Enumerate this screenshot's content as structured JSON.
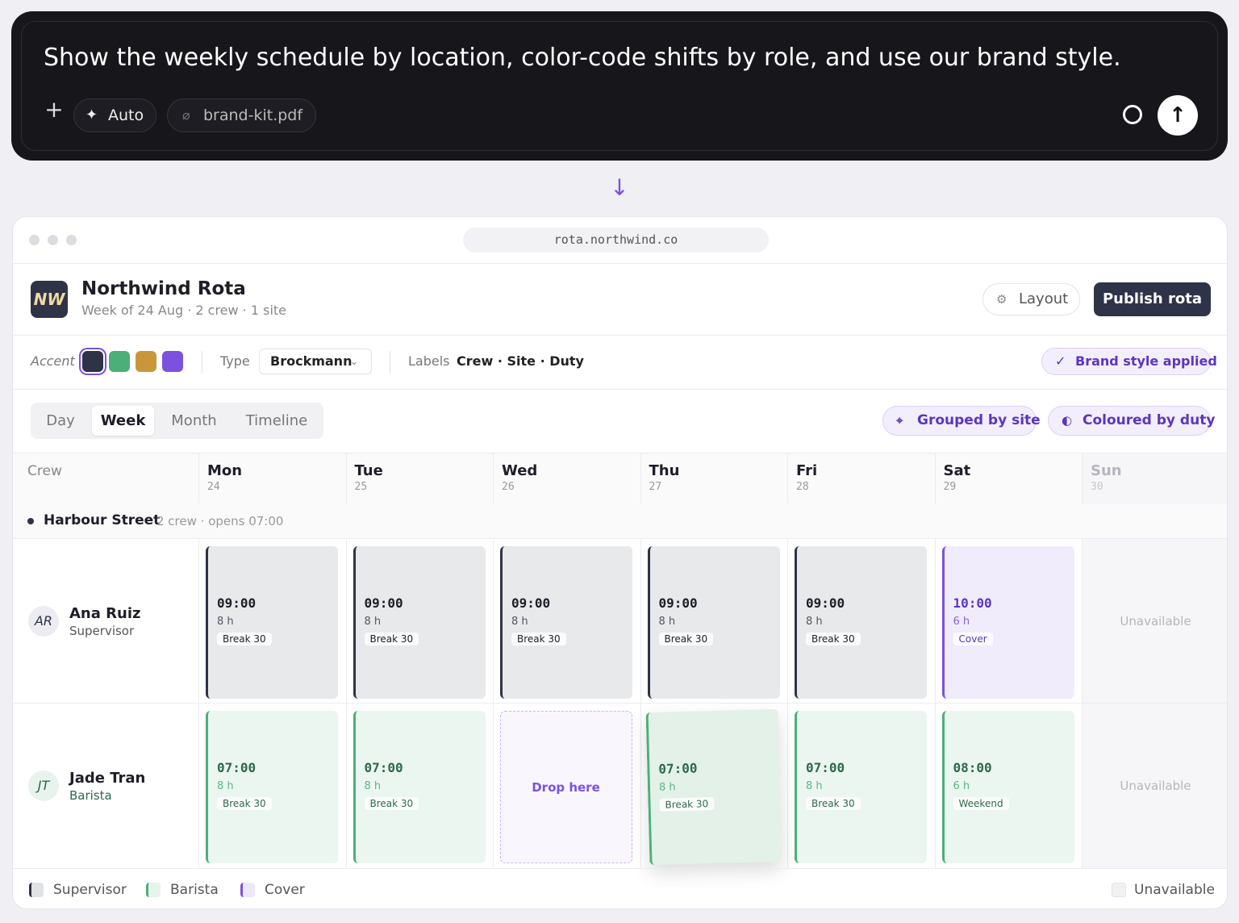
{
  "prompt": {
    "text": "Show the weekly schedule by location, color-code shifts by role, and use our brand style.",
    "mode": "Auto",
    "attachment": "brand-kit.pdf"
  },
  "browser": {
    "url": "rota.northwind.co"
  },
  "app": {
    "logo": "NW",
    "title": "Northwind Rota",
    "subtitle": "Week of 24 Aug · 2 crew · 1 site",
    "layout_button": "Layout",
    "publish_button": "Publish rota"
  },
  "toolbar": {
    "accent_label": "Accent",
    "accents": [
      "#2e3347",
      "#4caf78",
      "#c9973a",
      "#7b52e0"
    ],
    "type_label": "Type",
    "type_value": "Brockmann",
    "labels_label": "Labels",
    "labels_value": "Crew · Site · Duty",
    "status": "Brand style applied"
  },
  "views": [
    {
      "label": "Day",
      "active": false
    },
    {
      "label": "Week",
      "active": true
    },
    {
      "label": "Month",
      "active": false
    },
    {
      "label": "Timeline",
      "active": false
    }
  ],
  "filters": [
    "Grouped by site",
    "Coloured by duty"
  ],
  "grid": {
    "crew_header": "Crew",
    "days": [
      {
        "name": "Mon",
        "date": 24
      },
      {
        "name": "Tue",
        "date": 25
      },
      {
        "name": "Wed",
        "date": 26
      },
      {
        "name": "Thu",
        "date": 27
      },
      {
        "name": "Fri",
        "date": 28
      },
      {
        "name": "Sat",
        "date": 29
      },
      {
        "name": "Sun",
        "date": 30,
        "closed": true
      }
    ],
    "site": {
      "name": "Harbour Street",
      "meta": "2 crew · opens 07:00"
    },
    "crew": [
      {
        "initials": "AR",
        "name": "Ana Ruiz",
        "role": "Supervisor",
        "shifts": [
          {
            "start": "09:00",
            "hours": "8 h",
            "tag": "Break 30",
            "color": "#2e3347"
          },
          {
            "start": "09:00",
            "hours": "8 h",
            "tag": "Break 30",
            "color": "#2e3347"
          },
          {
            "start": "09:00",
            "hours": "8 h",
            "tag": "Break 30",
            "color": "#2e3347"
          },
          {
            "start": "09:00",
            "hours": "8 h",
            "tag": "Break 30",
            "color": "#2e3347"
          },
          {
            "start": "09:00",
            "hours": "8 h",
            "tag": "Break 30",
            "color": "#2e3347"
          },
          {
            "start": "10:00",
            "hours": "6 h",
            "tag": "Cover",
            "color": "#7b52e0"
          },
          {
            "unavailable": "Unavailable"
          }
        ]
      },
      {
        "initials": "JT",
        "name": "Jade Tran",
        "role": "Barista",
        "shifts": [
          {
            "start": "07:00",
            "hours": "8 h",
            "tag": "Break 30",
            "color": "#4caf78"
          },
          {
            "start": "07:00",
            "hours": "8 h",
            "tag": "Break 30",
            "color": "#4caf78"
          },
          {
            "drop_hint": "Drop here"
          },
          {
            "start": "07:00",
            "hours": "8 h",
            "tag": "Break 30",
            "color": "#4caf78",
            "lifted": true
          },
          {
            "start": "07:00",
            "hours": "8 h",
            "tag": "Break 30",
            "color": "#4caf78"
          },
          {
            "start": "08:00",
            "hours": "6 h",
            "tag": "Weekend",
            "color": "#4caf78"
          },
          {
            "unavailable": "Unavailable"
          }
        ]
      }
    ]
  },
  "legend": [
    {
      "label": "Supervisor",
      "color": "#2e3347"
    },
    {
      "label": "Barista",
      "color": "#4caf78"
    },
    {
      "label": "Cover",
      "color": "#7b52e0"
    }
  ],
  "unavailable_legend": "Unavailable"
}
